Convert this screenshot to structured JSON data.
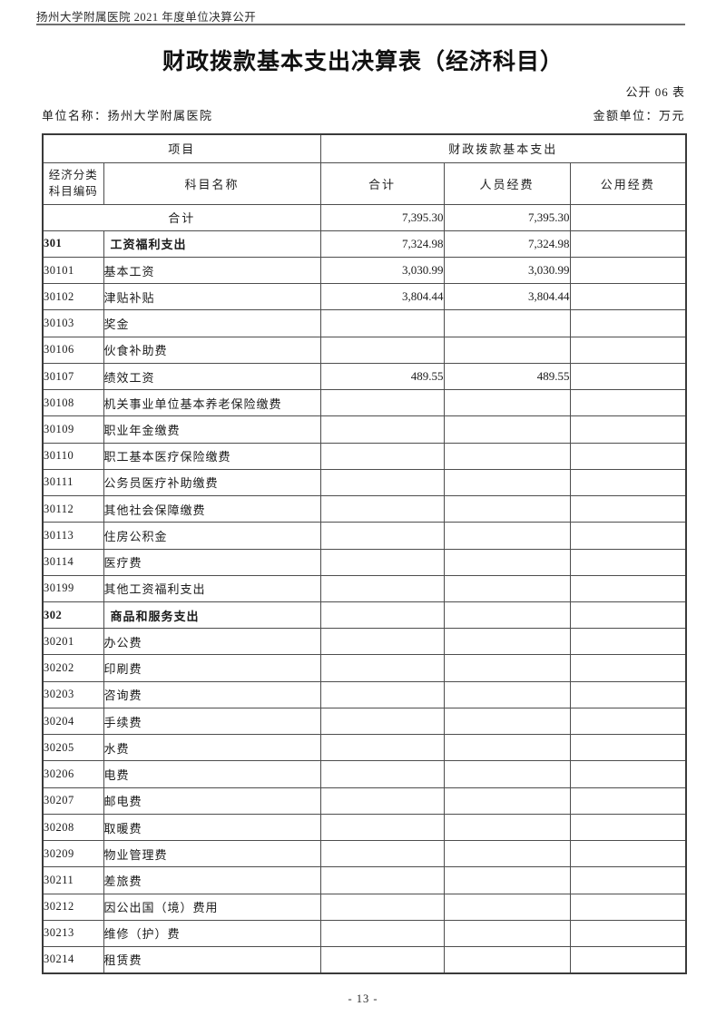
{
  "doc_header": "扬州大学附属医院 2021 年度单位决算公开",
  "title": "财政拨款基本支出决算表（经济科目）",
  "table_code": "公开 06 表",
  "meta": {
    "unit_name": "单位名称：扬州大学附属医院",
    "amount_unit": "金额单位：万元"
  },
  "table": {
    "header": {
      "group_project": "项目",
      "group_expenditure": "财政拨款基本支出",
      "code_line1": "经济分类",
      "code_line2": "科目编码",
      "col_name": "科目名称",
      "col_total": "合计",
      "col_personnel": "人员经费",
      "col_public": "公用经费"
    },
    "total_row": {
      "label": "合计",
      "total": "7,395.30",
      "personnel": "7,395.30",
      "public": ""
    },
    "rows": [
      {
        "code": "301",
        "name": "工资福利支出",
        "level": "cat",
        "total": "7,324.98",
        "personnel": "7,324.98",
        "public": ""
      },
      {
        "code": "30101",
        "name": "基本工资",
        "level": "sub",
        "total": "3,030.99",
        "personnel": "3,030.99",
        "public": ""
      },
      {
        "code": "30102",
        "name": "津贴补贴",
        "level": "sub",
        "total": "3,804.44",
        "personnel": "3,804.44",
        "public": ""
      },
      {
        "code": "30103",
        "name": "奖金",
        "level": "sub",
        "total": "",
        "personnel": "",
        "public": ""
      },
      {
        "code": "30106",
        "name": "伙食补助费",
        "level": "sub",
        "total": "",
        "personnel": "",
        "public": ""
      },
      {
        "code": "30107",
        "name": "绩效工资",
        "level": "sub",
        "total": "489.55",
        "personnel": "489.55",
        "public": ""
      },
      {
        "code": "30108",
        "name": "机关事业单位基本养老保险缴费",
        "level": "sub",
        "total": "",
        "personnel": "",
        "public": ""
      },
      {
        "code": "30109",
        "name": "职业年金缴费",
        "level": "sub",
        "total": "",
        "personnel": "",
        "public": ""
      },
      {
        "code": "30110",
        "name": "职工基本医疗保险缴费",
        "level": "sub",
        "total": "",
        "personnel": "",
        "public": ""
      },
      {
        "code": "30111",
        "name": "公务员医疗补助缴费",
        "level": "sub",
        "total": "",
        "personnel": "",
        "public": ""
      },
      {
        "code": "30112",
        "name": "其他社会保障缴费",
        "level": "sub",
        "total": "",
        "personnel": "",
        "public": ""
      },
      {
        "code": "30113",
        "name": "住房公积金",
        "level": "sub",
        "total": "",
        "personnel": "",
        "public": ""
      },
      {
        "code": "30114",
        "name": "医疗费",
        "level": "sub",
        "total": "",
        "personnel": "",
        "public": ""
      },
      {
        "code": "30199",
        "name": "其他工资福利支出",
        "level": "sub",
        "total": "",
        "personnel": "",
        "public": ""
      },
      {
        "code": "302",
        "name": "商品和服务支出",
        "level": "cat",
        "total": "",
        "personnel": "",
        "public": ""
      },
      {
        "code": "30201",
        "name": "办公费",
        "level": "sub",
        "total": "",
        "personnel": "",
        "public": ""
      },
      {
        "code": "30202",
        "name": "印刷费",
        "level": "sub",
        "total": "",
        "personnel": "",
        "public": ""
      },
      {
        "code": "30203",
        "name": "咨询费",
        "level": "sub",
        "total": "",
        "personnel": "",
        "public": ""
      },
      {
        "code": "30204",
        "name": "手续费",
        "level": "sub",
        "total": "",
        "personnel": "",
        "public": ""
      },
      {
        "code": "30205",
        "name": "水费",
        "level": "sub",
        "total": "",
        "personnel": "",
        "public": ""
      },
      {
        "code": "30206",
        "name": "电费",
        "level": "sub",
        "total": "",
        "personnel": "",
        "public": ""
      },
      {
        "code": "30207",
        "name": "邮电费",
        "level": "sub",
        "total": "",
        "personnel": "",
        "public": ""
      },
      {
        "code": "30208",
        "name": "取暖费",
        "level": "sub",
        "total": "",
        "personnel": "",
        "public": ""
      },
      {
        "code": "30209",
        "name": "物业管理费",
        "level": "sub",
        "total": "",
        "personnel": "",
        "public": ""
      },
      {
        "code": "30211",
        "name": "差旅费",
        "level": "sub",
        "total": "",
        "personnel": "",
        "public": ""
      },
      {
        "code": "30212",
        "name": "因公出国（境）费用",
        "level": "sub",
        "total": "",
        "personnel": "",
        "public": ""
      },
      {
        "code": "30213",
        "name": "维修（护）费",
        "level": "sub",
        "total": "",
        "personnel": "",
        "public": ""
      },
      {
        "code": "30214",
        "name": "租赁费",
        "level": "sub",
        "total": "",
        "personnel": "",
        "public": ""
      }
    ]
  },
  "footer": {
    "page_number": "- 13 -"
  },
  "colors": {
    "border": "#4d4d4d",
    "rule": "#6e6e6e",
    "text": "#1a1a1a"
  }
}
